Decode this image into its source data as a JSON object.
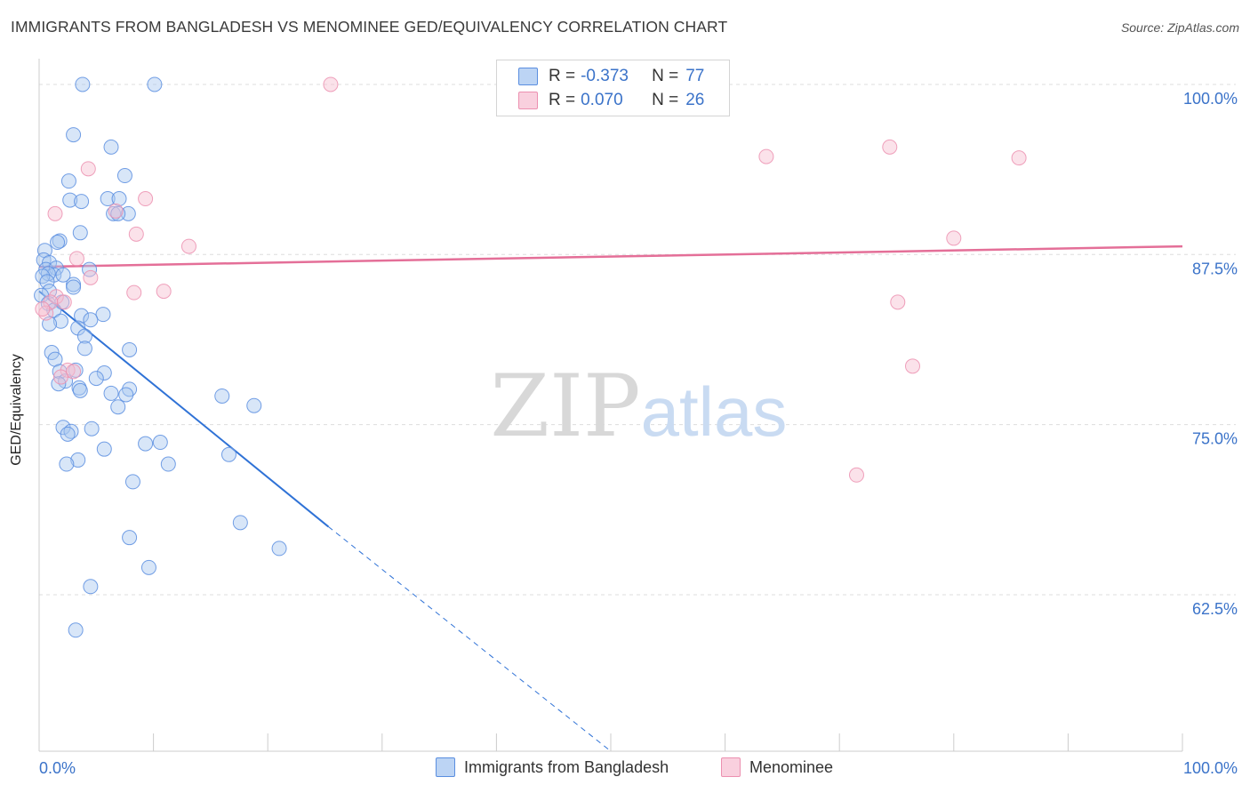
{
  "title": "IMMIGRANTS FROM BANGLADESH VS MENOMINEE GED/EQUIVALENCY CORRELATION CHART",
  "source": "Source: ZipAtlas.com",
  "watermark": {
    "zip": "ZIP",
    "atlas": "atlas"
  },
  "colors": {
    "blue_fill": "#a9c8f0",
    "blue_stroke": "#5a8ee0",
    "blue_line": "#2f72d6",
    "pink_fill": "#f6bfd1",
    "pink_stroke": "#ec90b0",
    "pink_line": "#e46f98",
    "axis_text": "#3b73c9",
    "grid": "#dddddd"
  },
  "stats": [
    {
      "r_label": "R =",
      "r_value": "-0.373",
      "n_label": "N =",
      "n_value": "77",
      "color": "blue"
    },
    {
      "r_label": "R =",
      "r_value": "0.070",
      "n_label": "N =",
      "n_value": "26",
      "color": "pink"
    }
  ],
  "legend": [
    {
      "label": "Immigrants from Bangladesh",
      "color": "blue"
    },
    {
      "label": "Menominee",
      "color": "pink"
    }
  ],
  "chart_data": {
    "type": "scatter",
    "title": "IMMIGRANTS FROM BANGLADESH VS MENOMINEE GED/EQUIVALENCY CORRELATION CHART",
    "xlabel": "",
    "ylabel": "GED/Equivalency",
    "xlim": [
      0,
      100
    ],
    "ylim": [
      51.0,
      101.5
    ],
    "x_tick_labels": [
      {
        "value": 0,
        "label": "0.0%"
      },
      {
        "value": 100,
        "label": "100.0%"
      }
    ],
    "y_tick_labels": [
      {
        "value": 100,
        "label": "100.0%"
      },
      {
        "value": 87.5,
        "label": "87.5%"
      },
      {
        "value": 75,
        "label": "75.0%"
      },
      {
        "value": 62.5,
        "label": "62.5%"
      }
    ],
    "grid": true,
    "series": [
      {
        "name": "Immigrants from Bangladesh",
        "color": "blue",
        "points": [
          [
            3.8,
            100.0
          ],
          [
            10.1,
            100.0
          ],
          [
            3.0,
            96.3
          ],
          [
            6.3,
            95.4
          ],
          [
            7.5,
            93.3
          ],
          [
            2.6,
            92.9
          ],
          [
            6.0,
            91.6
          ],
          [
            2.7,
            91.5
          ],
          [
            3.7,
            91.4
          ],
          [
            7.0,
            91.6
          ],
          [
            6.5,
            90.5
          ],
          [
            7.8,
            90.5
          ],
          [
            6.9,
            90.5
          ],
          [
            3.6,
            89.1
          ],
          [
            1.8,
            88.5
          ],
          [
            1.6,
            88.4
          ],
          [
            0.5,
            87.8
          ],
          [
            0.4,
            87.1
          ],
          [
            0.9,
            86.9
          ],
          [
            0.6,
            86.4
          ],
          [
            1.5,
            86.5
          ],
          [
            4.4,
            86.4
          ],
          [
            1.3,
            86.0
          ],
          [
            0.8,
            86.1
          ],
          [
            2.1,
            86.0
          ],
          [
            0.3,
            85.9
          ],
          [
            0.7,
            85.5
          ],
          [
            3.0,
            85.3
          ],
          [
            3.0,
            85.1
          ],
          [
            0.9,
            84.8
          ],
          [
            0.2,
            84.5
          ],
          [
            2.0,
            84.0
          ],
          [
            0.8,
            83.9
          ],
          [
            1.3,
            83.4
          ],
          [
            5.6,
            83.1
          ],
          [
            3.7,
            83.0
          ],
          [
            4.5,
            82.7
          ],
          [
            1.9,
            82.6
          ],
          [
            0.9,
            82.4
          ],
          [
            3.4,
            82.1
          ],
          [
            4.0,
            81.5
          ],
          [
            4.0,
            80.6
          ],
          [
            7.9,
            80.5
          ],
          [
            1.1,
            80.3
          ],
          [
            1.4,
            79.8
          ],
          [
            3.2,
            79.0
          ],
          [
            1.8,
            78.9
          ],
          [
            5.7,
            78.8
          ],
          [
            5.0,
            78.4
          ],
          [
            2.3,
            78.2
          ],
          [
            1.7,
            78.0
          ],
          [
            3.5,
            77.7
          ],
          [
            3.6,
            77.5
          ],
          [
            7.9,
            77.6
          ],
          [
            6.3,
            77.3
          ],
          [
            7.6,
            77.2
          ],
          [
            16.0,
            77.1
          ],
          [
            6.9,
            76.3
          ],
          [
            18.8,
            76.4
          ],
          [
            2.1,
            74.8
          ],
          [
            4.6,
            74.7
          ],
          [
            2.8,
            74.5
          ],
          [
            2.5,
            74.3
          ],
          [
            10.6,
            73.7
          ],
          [
            9.3,
            73.6
          ],
          [
            5.7,
            73.2
          ],
          [
            16.6,
            72.8
          ],
          [
            3.4,
            72.4
          ],
          [
            2.4,
            72.1
          ],
          [
            11.3,
            72.1
          ],
          [
            8.2,
            70.8
          ],
          [
            17.6,
            67.8
          ],
          [
            7.9,
            66.7
          ],
          [
            21.0,
            65.9
          ],
          [
            9.6,
            64.5
          ],
          [
            4.5,
            63.1
          ],
          [
            3.2,
            59.9
          ]
        ]
      },
      {
        "name": "Menominee",
        "color": "pink",
        "points": [
          [
            25.5,
            100.0
          ],
          [
            4.3,
            93.8
          ],
          [
            1.4,
            90.5
          ],
          [
            9.3,
            91.6
          ],
          [
            6.7,
            90.7
          ],
          [
            8.5,
            89.0
          ],
          [
            13.1,
            88.1
          ],
          [
            3.3,
            87.2
          ],
          [
            4.5,
            85.8
          ],
          [
            8.3,
            84.7
          ],
          [
            10.9,
            84.8
          ],
          [
            1.5,
            84.4
          ],
          [
            2.2,
            84.0
          ],
          [
            1.0,
            84.0
          ],
          [
            0.6,
            83.2
          ],
          [
            2.5,
            79.0
          ],
          [
            3.0,
            78.9
          ],
          [
            1.9,
            78.5
          ],
          [
            63.6,
            94.7
          ],
          [
            74.4,
            95.4
          ],
          [
            85.7,
            94.6
          ],
          [
            80.0,
            88.7
          ],
          [
            75.1,
            84.0
          ],
          [
            76.4,
            79.3
          ],
          [
            71.5,
            71.3
          ],
          [
            0.3,
            83.5
          ]
        ]
      }
    ],
    "trend_lines": [
      {
        "series": "Immigrants from Bangladesh",
        "solid_from": [
          0,
          84.8
        ],
        "solid_to": [
          25.3,
          67.5
        ],
        "dashed_to": [
          50.0,
          51.0
        ]
      },
      {
        "series": "Menominee",
        "from": [
          0,
          86.6
        ],
        "to": [
          100,
          88.1
        ]
      }
    ]
  }
}
